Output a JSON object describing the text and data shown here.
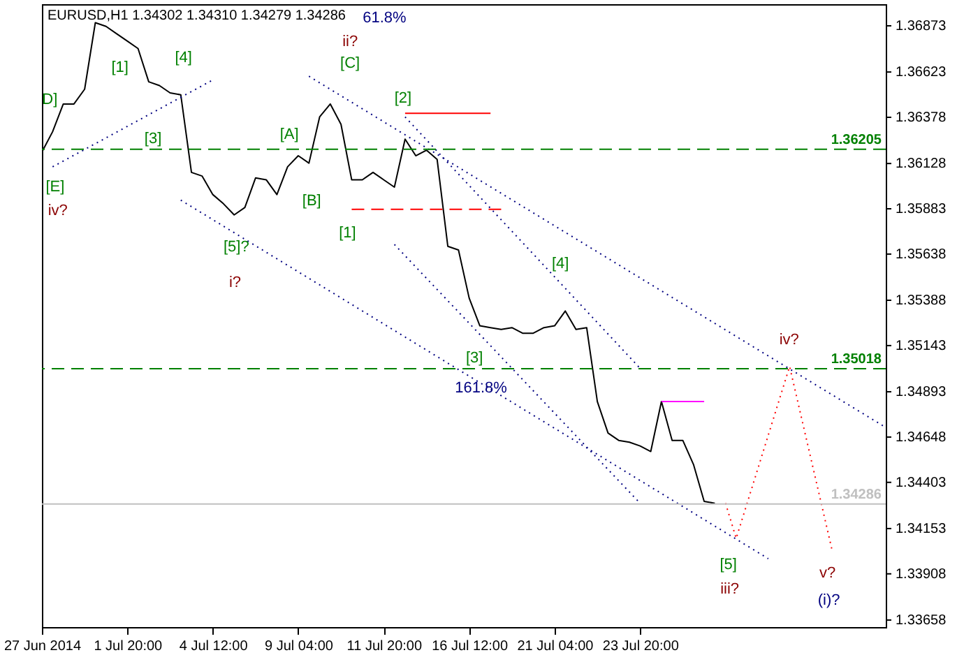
{
  "chart_data": {
    "type": "line",
    "title": "EURUSD,H1  1.34302 1.34310 1.34279 1.34286",
    "categories": [
      "27 Jun 2014",
      null,
      null,
      null,
      null,
      null,
      null,
      null,
      "1 Jul 20:00",
      null,
      null,
      null,
      null,
      null,
      null,
      null,
      "4 Jul 12:00",
      null,
      null,
      null,
      null,
      null,
      null,
      null,
      "9 Jul 04:00",
      null,
      null,
      null,
      null,
      null,
      null,
      null,
      "11 Jul 20:00",
      null,
      null,
      null,
      null,
      null,
      null,
      null,
      "16 Jul 12:00",
      null,
      null,
      null,
      null,
      null,
      null,
      null,
      "21 Jul 04:00",
      null,
      null,
      null,
      null,
      null,
      null,
      null,
      "23 Jul 20:00",
      null,
      null,
      null,
      null,
      null,
      null,
      null,
      null,
      null,
      null,
      null,
      null,
      null,
      null,
      null,
      null,
      null,
      null,
      null,
      null,
      null,
      null,
      null
    ],
    "ylim": [
      1.3362,
      1.3699
    ],
    "yticks": [
      1.36873,
      1.36623,
      1.36378,
      1.36128,
      1.35883,
      1.35638,
      1.35388,
      1.35143,
      1.34893,
      1.34648,
      1.34403,
      1.34153,
      1.33908,
      1.33658
    ],
    "series": [
      {
        "color": "#000000",
        "values": [
          1.3619,
          1.363,
          1.3645,
          1.3645,
          1.3653,
          1.3689,
          1.3687,
          1.3683,
          1.3679,
          1.3675,
          1.3657,
          1.3655,
          1.3651,
          1.365,
          1.3608,
          1.3606,
          1.3596,
          1.3591,
          1.3585,
          1.3589,
          1.3605,
          1.3604,
          1.3596,
          1.3611,
          1.3617,
          1.3613,
          1.3638,
          1.3645,
          1.3634,
          1.3604,
          1.3604,
          1.3608,
          1.3604,
          1.36,
          1.3626,
          1.3617,
          1.362,
          1.3615,
          1.3568,
          1.3566,
          1.354,
          1.3525,
          1.3524,
          1.3523,
          1.3524,
          1.3521,
          1.3521,
          1.3524,
          1.3525,
          1.3533,
          1.3523,
          1.3524,
          1.3484,
          1.3467,
          1.3463,
          1.3462,
          1.346,
          1.3457,
          1.3484,
          1.3463,
          1.3463,
          1.345,
          1.343,
          1.3429,
          null,
          null,
          null,
          null,
          null,
          null,
          null,
          null,
          null,
          null,
          null,
          null,
          null,
          null,
          null,
          null
        ]
      },
      {
        "color": "#ff0000",
        "line_style": "dotted",
        "values": [
          null,
          null,
          null,
          null,
          null,
          null,
          null,
          null,
          null,
          null,
          null,
          null,
          null,
          null,
          null,
          null,
          null,
          null,
          null,
          null,
          null,
          null,
          null,
          null,
          null,
          null,
          null,
          null,
          null,
          null,
          null,
          null,
          null,
          null,
          null,
          null,
          null,
          null,
          null,
          null,
          null,
          null,
          null,
          null,
          null,
          null,
          null,
          null,
          null,
          null,
          null,
          null,
          null,
          null,
          null,
          null,
          null,
          null,
          null,
          null,
          null,
          null,
          null,
          null,
          1.3429,
          1.341,
          null,
          null,
          null,
          null,
          1.3503,
          null,
          null,
          null,
          1.3403,
          null,
          null,
          null,
          null,
          null
        ]
      },
      {
        "color": "#000080",
        "line_style": "dotted",
        "values": [
          null,
          null,
          null,
          null,
          null,
          null,
          null,
          null,
          null,
          null,
          null,
          null,
          null,
          null,
          null,
          null,
          null,
          null,
          null,
          null,
          null,
          null,
          null,
          null,
          null,
          1.366,
          null,
          null,
          null,
          null,
          null,
          null,
          null,
          null,
          null,
          null,
          null,
          null,
          null,
          null,
          null,
          null,
          null,
          null,
          null,
          null,
          null,
          null,
          null,
          null,
          null,
          null,
          null,
          null,
          null,
          null,
          null,
          null,
          null,
          null,
          null,
          null,
          null,
          null,
          null,
          null,
          null,
          null,
          null,
          null,
          null,
          null,
          null,
          null,
          null,
          null,
          null,
          null,
          null,
          1.347
        ]
      },
      {
        "color": "#000080",
        "line_style": "dotted",
        "values": [
          null,
          null,
          null,
          null,
          null,
          null,
          null,
          null,
          null,
          null,
          null,
          null,
          null,
          null,
          null,
          null,
          null,
          null,
          null,
          null,
          null,
          null,
          null,
          null,
          null,
          null,
          null,
          null,
          null,
          null,
          null,
          null,
          null,
          null,
          1.3638,
          null,
          null,
          null,
          null,
          null,
          null,
          null,
          null,
          null,
          null,
          null,
          null,
          null,
          null,
          null,
          null,
          null,
          null,
          null,
          null,
          null,
          1.3502,
          null,
          null,
          null,
          null,
          null,
          null,
          null,
          null,
          null,
          null,
          null,
          null,
          null,
          null,
          null,
          null,
          null,
          null,
          null,
          null,
          null,
          null,
          null
        ]
      },
      {
        "color": "#000080",
        "line_style": "dotted",
        "values": [
          null,
          null,
          null,
          null,
          null,
          null,
          null,
          null,
          null,
          null,
          null,
          null,
          null,
          null,
          null,
          null,
          null,
          null,
          null,
          null,
          null,
          null,
          null,
          null,
          null,
          null,
          null,
          null,
          null,
          null,
          null,
          null,
          null,
          1.3569,
          null,
          null,
          null,
          null,
          null,
          null,
          null,
          null,
          null,
          null,
          null,
          null,
          null,
          null,
          null,
          null,
          null,
          null,
          null,
          null,
          null,
          null,
          1.3429,
          null,
          null,
          null,
          null,
          null,
          null,
          null,
          null,
          null,
          null,
          null,
          null,
          null,
          null,
          null,
          null,
          null,
          null,
          null,
          null,
          null,
          null,
          null
        ]
      },
      {
        "color": "#000080",
        "line_style": "dotted",
        "values": [
          null,
          null,
          null,
          null,
          null,
          null,
          null,
          null,
          null,
          null,
          null,
          null,
          null,
          1.3593,
          null,
          null,
          null,
          null,
          null,
          null,
          null,
          null,
          null,
          null,
          null,
          null,
          null,
          null,
          null,
          null,
          null,
          null,
          null,
          null,
          null,
          null,
          null,
          null,
          null,
          null,
          null,
          null,
          null,
          null,
          null,
          null,
          null,
          null,
          null,
          null,
          null,
          null,
          null,
          null,
          null,
          null,
          null,
          null,
          null,
          null,
          null,
          null,
          null,
          null,
          null,
          null,
          null,
          null,
          1.3399,
          null,
          null,
          null,
          null,
          null,
          null,
          null,
          null,
          null,
          null,
          null
        ]
      },
      {
        "color": "#000080",
        "line_style": "dotted",
        "values": [
          null,
          1.3611,
          null,
          null,
          null,
          null,
          null,
          null,
          null,
          null,
          null,
          null,
          null,
          null,
          null,
          null,
          1.3658,
          null,
          null,
          null,
          null,
          null,
          null,
          null,
          null,
          null,
          null,
          null,
          null,
          null,
          null,
          null,
          null,
          null,
          null,
          null,
          null,
          null,
          null,
          null,
          null,
          null,
          null,
          null,
          null,
          null,
          null,
          null,
          null,
          null,
          null,
          null,
          null,
          null,
          null,
          null,
          null,
          null,
          null,
          null,
          null,
          null,
          null,
          null,
          null,
          null,
          null,
          null,
          null,
          null,
          null,
          null,
          null,
          null,
          null,
          null,
          null,
          null,
          null,
          null
        ]
      },
      {
        "color": "#ff0000",
        "line_style": "solid",
        "values": [
          null,
          null,
          null,
          null,
          null,
          null,
          null,
          null,
          null,
          null,
          null,
          null,
          null,
          null,
          null,
          null,
          null,
          null,
          null,
          null,
          null,
          null,
          null,
          null,
          null,
          null,
          null,
          null,
          null,
          null,
          null,
          null,
          null,
          null,
          1.364,
          null,
          null,
          null,
          null,
          null,
          null,
          null,
          1.364,
          null,
          null,
          null,
          null,
          null,
          null,
          null,
          null,
          null,
          null,
          null,
          null,
          null,
          null,
          null,
          null,
          null,
          null,
          null,
          null,
          null,
          null,
          null,
          null,
          null,
          null,
          null,
          null,
          null,
          null,
          null,
          null,
          null,
          null,
          null,
          null,
          null
        ]
      },
      {
        "color": "#ff00ff",
        "line_style": "solid",
        "values": [
          null,
          null,
          null,
          null,
          null,
          null,
          null,
          null,
          null,
          null,
          null,
          null,
          null,
          null,
          null,
          null,
          null,
          null,
          null,
          null,
          null,
          null,
          null,
          null,
          null,
          null,
          null,
          null,
          null,
          null,
          null,
          null,
          null,
          null,
          null,
          null,
          null,
          null,
          null,
          null,
          null,
          null,
          null,
          null,
          null,
          null,
          null,
          null,
          null,
          null,
          null,
          null,
          null,
          null,
          null,
          null,
          null,
          null,
          1.3484,
          null,
          null,
          null,
          1.3484,
          null,
          null,
          null,
          null,
          null,
          null,
          null,
          null,
          null,
          null,
          null,
          null,
          null,
          null,
          null,
          null,
          null
        ]
      },
      {
        "color": "#ff0000",
        "line_style": "dashed",
        "values": [
          null,
          null,
          null,
          null,
          null,
          null,
          null,
          null,
          null,
          null,
          null,
          null,
          null,
          null,
          null,
          null,
          null,
          null,
          null,
          null,
          null,
          null,
          null,
          null,
          null,
          null,
          null,
          null,
          null,
          1.3588,
          null,
          null,
          null,
          null,
          null,
          null,
          null,
          null,
          null,
          null,
          null,
          null,
          null,
          1.3588,
          null,
          null,
          null,
          null,
          null,
          null,
          null,
          null,
          null,
          null,
          null,
          null,
          null,
          null,
          null,
          null,
          null,
          null,
          null,
          null,
          null,
          null,
          null,
          null,
          null,
          null,
          null,
          null,
          null,
          null,
          null,
          null,
          null,
          null,
          null,
          null
        ]
      }
    ],
    "ref_lines": [
      {
        "axis": "y",
        "value": 1.36205,
        "label": "1.36205",
        "color": "#008000",
        "line_style": "dashed"
      },
      {
        "axis": "y",
        "value": 1.35018,
        "label": "1.35018",
        "color": "#008000",
        "line_style": "dashed"
      },
      {
        "axis": "y",
        "value": 1.34286,
        "label": "1.34286",
        "color": "#c0c0c0",
        "line_style": "solid"
      }
    ],
    "annotations": [
      "61.8%",
      "ii?",
      "[C]",
      "[1]",
      "[4]",
      "D]",
      "[3]",
      "[E]",
      "iv?",
      "[A]",
      "[B]",
      "[1]",
      "[5]?",
      "i?",
      "[2]",
      "[4]",
      "[3]",
      "161.8%",
      "iv?",
      "[5]",
      "iii?",
      "v?",
      "(i)?"
    ]
  }
}
